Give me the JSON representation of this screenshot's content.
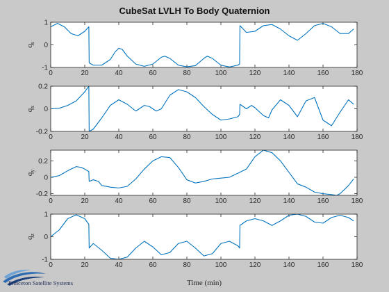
{
  "chart_data": {
    "type": "line",
    "title": "CubeSat LVLH To Body Quaternion",
    "xlabel": "Time (min)",
    "xlim": [
      0,
      180
    ],
    "xticks": [
      0,
      20,
      40,
      60,
      80,
      100,
      120,
      140,
      160,
      180
    ],
    "line_color": "#0072bd",
    "grid": false,
    "subplots": [
      {
        "ylabel_base": "q",
        "ylabel_sub": "s",
        "ylim": [
          -1,
          1
        ],
        "yticks": [
          -1,
          0,
          1
        ],
        "series": [
          {
            "x": [
              0,
              4,
              8,
              12,
              16,
              20,
              22.4,
              22.6,
              25,
              30,
              35,
              38,
              40,
              42,
              45,
              50,
              55,
              60,
              65,
              67,
              70,
              75,
              80,
              85,
              90,
              92,
              95,
              100,
              105,
              110,
              111,
              111.2,
              115,
              120,
              125,
              130,
              135,
              140,
              145,
              150,
              155,
              160,
              165,
              170,
              175,
              178
            ],
            "y": [
              0.8,
              0.95,
              0.8,
              0.5,
              0.4,
              0.6,
              0.8,
              -0.8,
              -0.9,
              -0.9,
              -0.65,
              -0.3,
              -0.15,
              -0.2,
              -0.5,
              -0.85,
              -0.95,
              -0.85,
              -0.55,
              -0.5,
              -0.6,
              -0.9,
              -0.97,
              -0.92,
              -0.6,
              -0.5,
              -0.6,
              -0.9,
              -0.98,
              -0.9,
              -0.85,
              0.85,
              0.55,
              0.6,
              0.85,
              0.9,
              0.7,
              0.4,
              0.2,
              0.5,
              0.85,
              0.95,
              0.8,
              0.5,
              0.5,
              0.7
            ]
          }
        ]
      },
      {
        "ylabel_base": "q",
        "ylabel_sub": "x",
        "ylim": [
          -0.2,
          0.2
        ],
        "yticks": [
          -0.2,
          0,
          0.2
        ],
        "series": [
          {
            "x": [
              0,
              5,
              10,
              15,
              20,
              22.4,
              22.6,
              25,
              30,
              35,
              40,
              45,
              50,
              55,
              58,
              62,
              65,
              70,
              75,
              80,
              85,
              90,
              95,
              100,
              105,
              110,
              111,
              111.2,
              115,
              118,
              120,
              125,
              128,
              130,
              135,
              140,
              145,
              150,
              155,
              160,
              165,
              170,
              175,
              178
            ],
            "y": [
              0,
              0.005,
              0.03,
              0.07,
              0.15,
              0.2,
              -0.2,
              -0.18,
              -0.08,
              0.03,
              0.08,
              0.04,
              -0.02,
              0.03,
              0.02,
              -0.02,
              0,
              0.12,
              0.17,
              0.15,
              0.1,
              0.02,
              -0.05,
              -0.1,
              -0.09,
              -0.07,
              -0.05,
              0.04,
              0,
              0.03,
              0.01,
              -0.06,
              -0.08,
              -0.01,
              0.08,
              0.03,
              -0.07,
              0.07,
              0.1,
              -0.1,
              -0.15,
              -0.03,
              0.08,
              0.04
            ]
          }
        ]
      },
      {
        "ylabel_base": "q",
        "ylabel_sub": "y",
        "ylim": [
          -0.22,
          0.33
        ],
        "yticks": [
          -0.2,
          0,
          0.2
        ],
        "series": [
          {
            "x": [
              0,
              5,
              10,
              15,
              18,
              20,
              22.4,
              22.6,
              25,
              28,
              30,
              35,
              40,
              45,
              50,
              55,
              60,
              65,
              70,
              75,
              80,
              85,
              90,
              95,
              100,
              105,
              110,
              115,
              120,
              125,
              130,
              135,
              140,
              145,
              150,
              155,
              160,
              165,
              168,
              170,
              175,
              178
            ],
            "y": [
              0,
              0.02,
              0.08,
              0.13,
              0.12,
              0.1,
              0.07,
              -0.05,
              -0.03,
              -0.05,
              -0.1,
              -0.12,
              -0.13,
              -0.11,
              -0.02,
              0.1,
              0.2,
              0.25,
              0.24,
              0.12,
              -0.03,
              -0.07,
              -0.05,
              -0.02,
              -0.01,
              0,
              0.05,
              0.1,
              0.25,
              0.33,
              0.3,
              0.2,
              0.06,
              -0.08,
              -0.12,
              -0.18,
              -0.2,
              -0.21,
              -0.22,
              -0.2,
              -0.1,
              -0.02
            ]
          }
        ]
      },
      {
        "ylabel_base": "q",
        "ylabel_sub": "z",
        "ylim": [
          -1,
          1
        ],
        "yticks": [
          -1,
          0,
          1
        ],
        "series": [
          {
            "x": [
              0,
              5,
              10,
              15,
              20,
              22.4,
              22.6,
              25,
              30,
              35,
              40,
              45,
              50,
              55,
              60,
              65,
              70,
              75,
              80,
              85,
              90,
              95,
              100,
              105,
              110,
              111,
              111.2,
              115,
              120,
              125,
              130,
              135,
              140,
              145,
              150,
              155,
              160,
              165,
              170,
              175,
              178
            ],
            "y": [
              0,
              0.3,
              0.8,
              0.97,
              0.8,
              0.55,
              -0.5,
              -0.3,
              -0.6,
              -0.95,
              -1,
              -0.9,
              -0.5,
              -0.2,
              -0.45,
              -0.8,
              -0.7,
              -0.3,
              -0.2,
              -0.5,
              -0.85,
              -0.75,
              -0.3,
              -0.2,
              -0.4,
              -0.5,
              0.5,
              0.7,
              0.8,
              0.7,
              0.5,
              0.7,
              0.95,
              1,
              0.9,
              0.65,
              0.6,
              0.85,
              0.95,
              0.85,
              0.7
            ]
          }
        ]
      }
    ]
  },
  "logo": {
    "text": "Princeton Satellite Systems"
  }
}
